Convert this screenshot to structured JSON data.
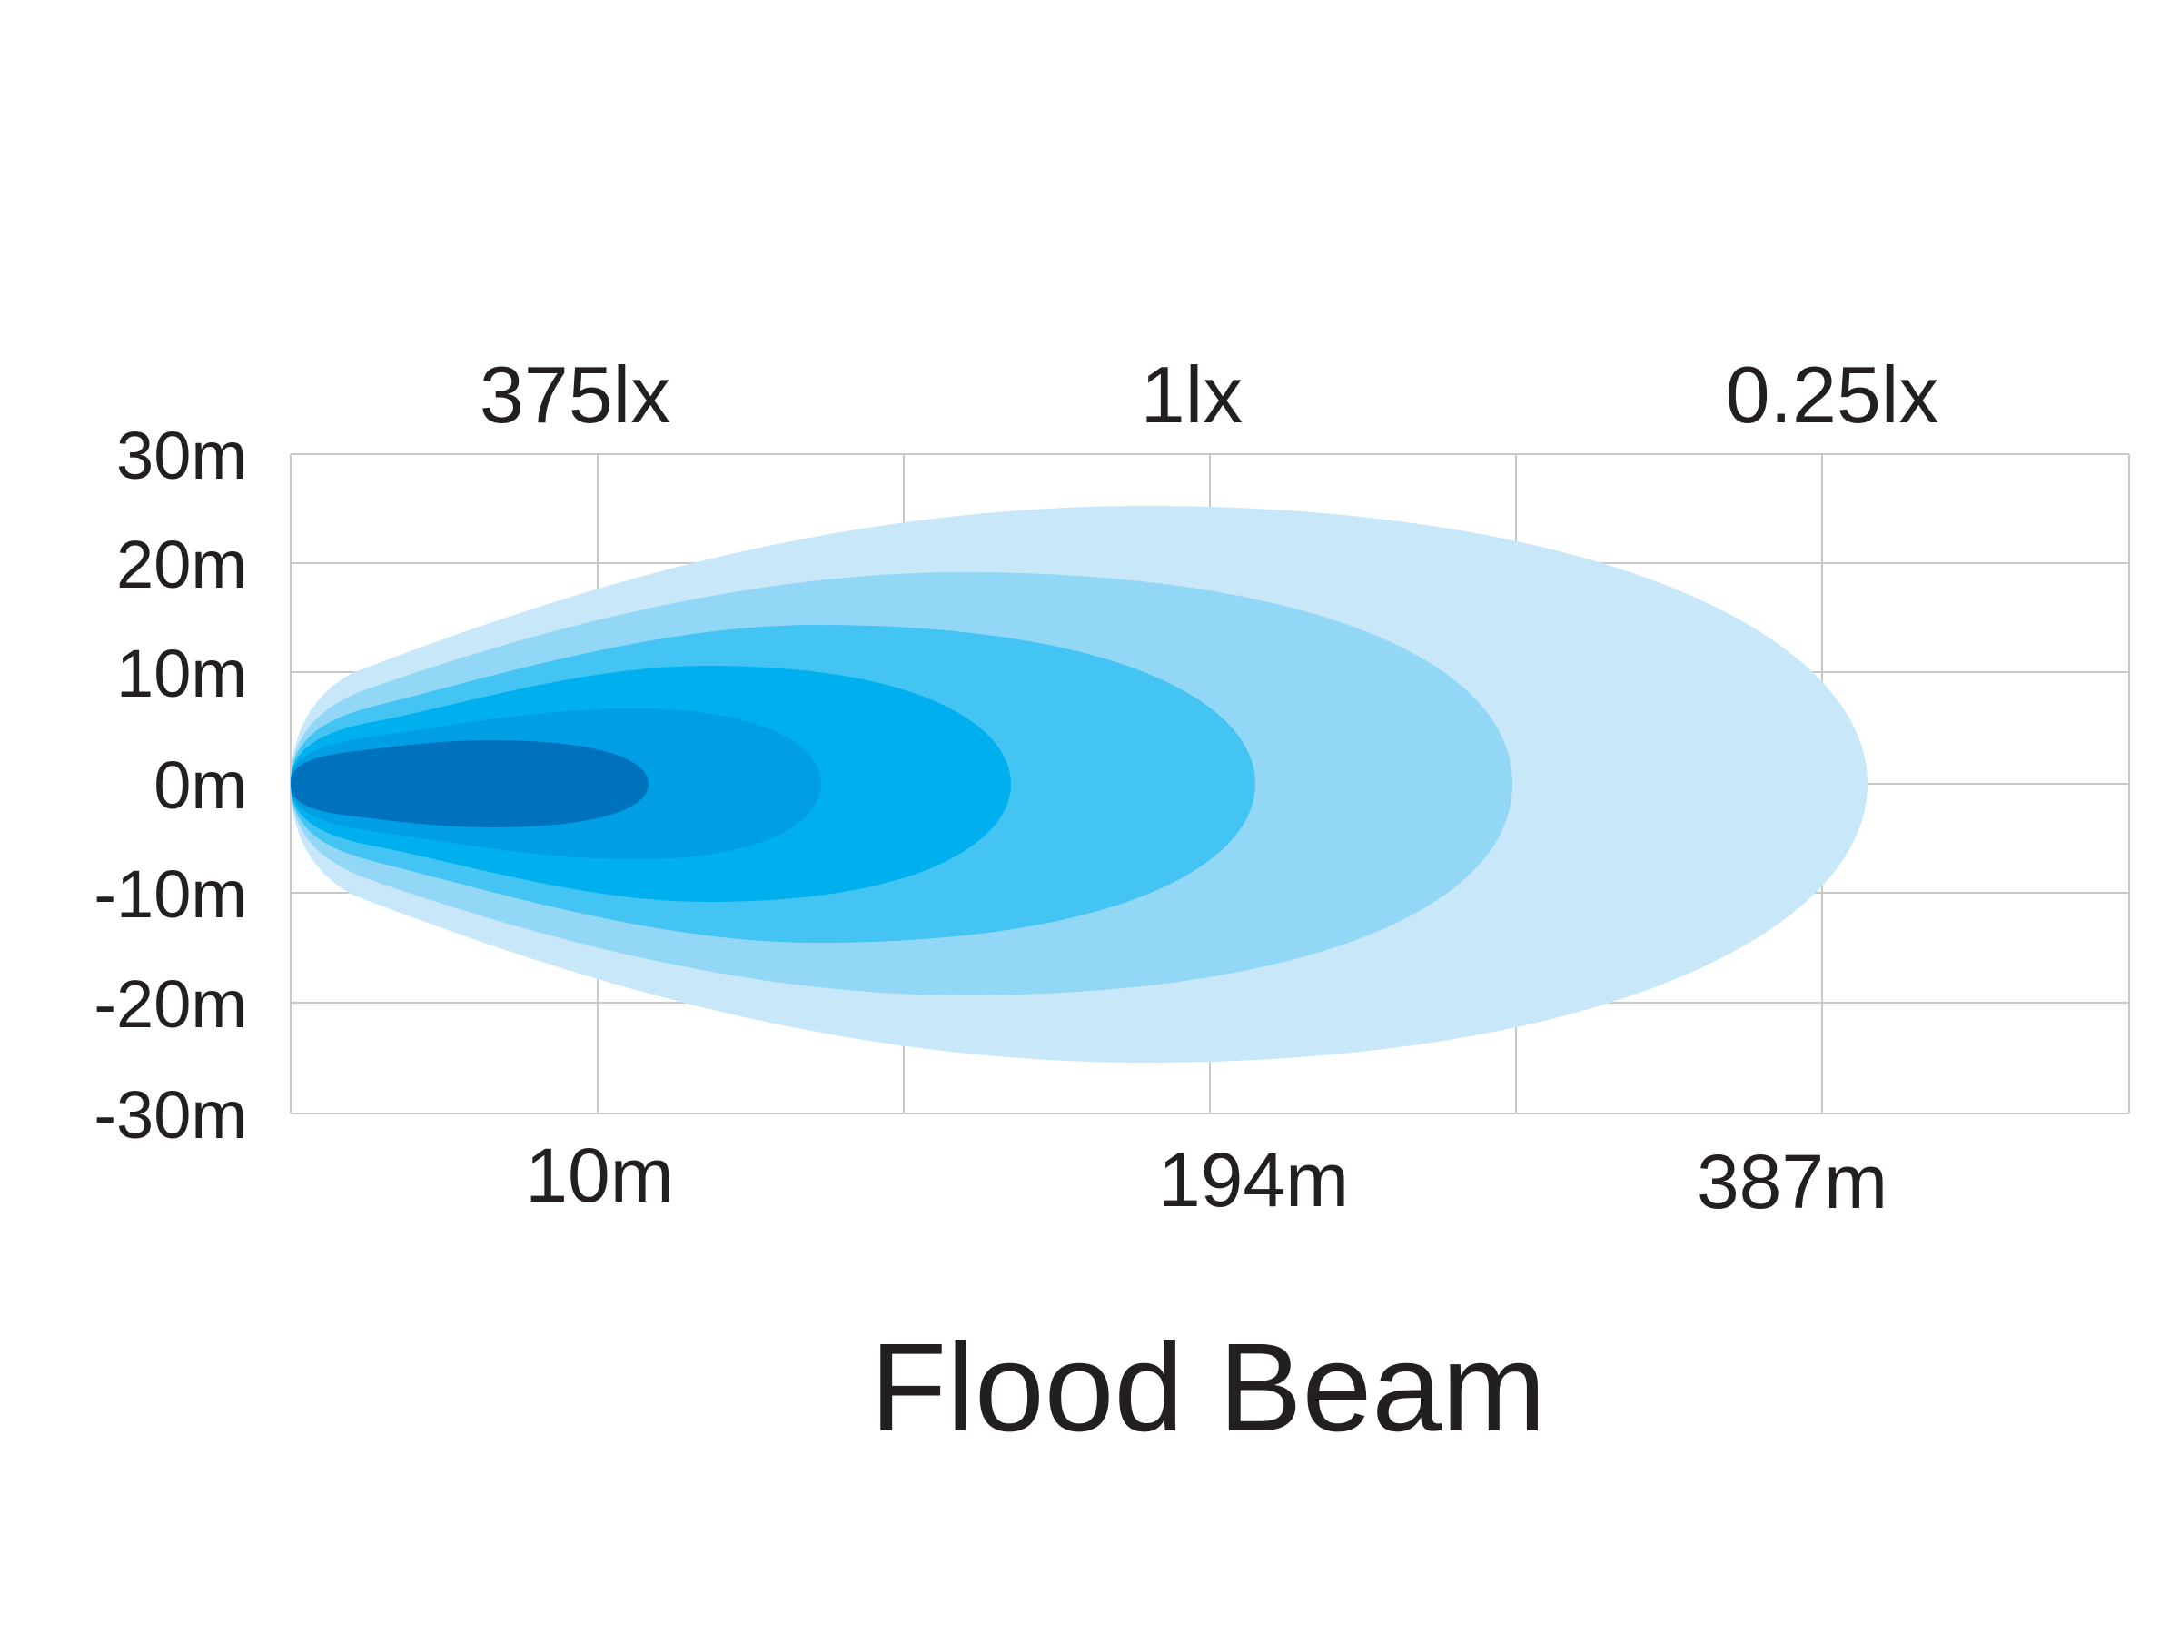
{
  "title": "Flood Beam",
  "y_axis_labels": [
    "30m",
    "20m",
    "10m",
    "0m",
    "-10m",
    "-20m",
    "-30m"
  ],
  "lux_labels": [
    "375lx",
    "1lx",
    "0.25lx"
  ],
  "distance_labels": [
    "10m",
    "194m",
    "387m"
  ],
  "zone_colors": [
    "#c8e8fa",
    "#92d7f6",
    "#44c4f3",
    "#00b0ee",
    "#009ee2",
    "#0071bc"
  ],
  "grid_color": "#c8c8c8",
  "text_color": "#231f20"
}
